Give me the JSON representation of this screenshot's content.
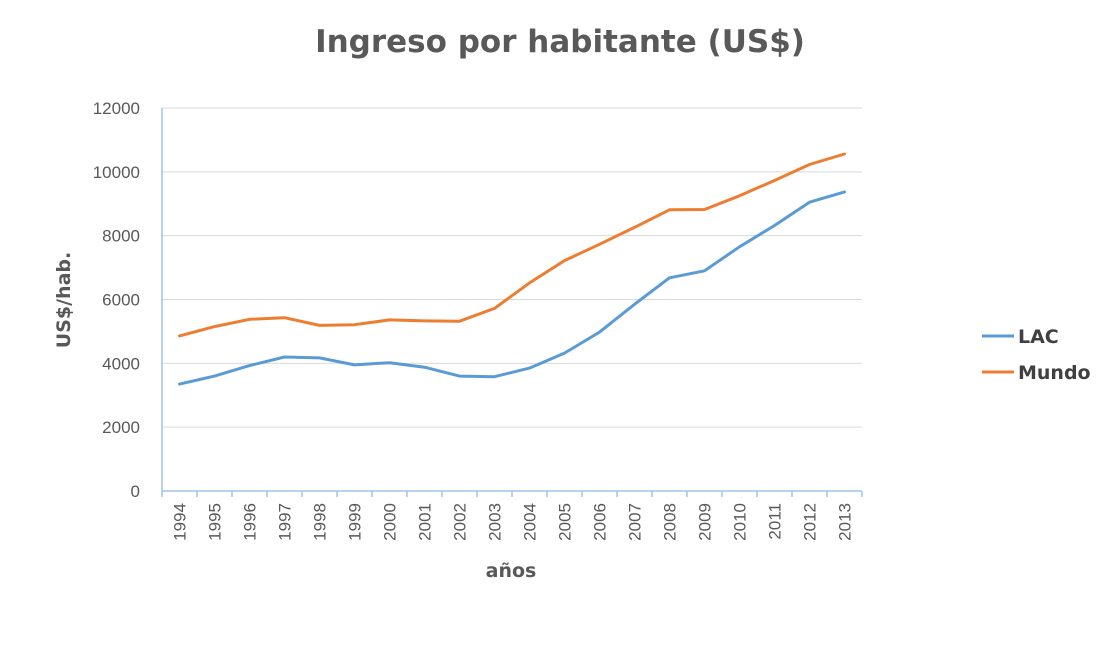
{
  "colors": {
    "lac": "#5b9bd5",
    "mundo": "#ed7d31",
    "text": "#595959",
    "grid": "#d9d9d9"
  },
  "chart_data": {
    "type": "line",
    "title": "Ingreso por habitante (US$)",
    "xlabel": "años",
    "ylabel": "US$/hab.",
    "ylim": [
      0,
      12000
    ],
    "yticks": [
      "0",
      "2000",
      "4000",
      "6000",
      "8000",
      "10000",
      "12000"
    ],
    "categories": [
      "1994",
      "1995",
      "1996",
      "1997",
      "1998",
      "1999",
      "2000",
      "2001",
      "2002",
      "2003",
      "2004",
      "2005",
      "2006",
      "2007",
      "2008",
      "2009",
      "2010",
      "2011",
      "2012",
      "2013"
    ],
    "grid": true,
    "legend_position": "right",
    "series": [
      {
        "name": "LAC",
        "color": "#5b9bd5",
        "values": [
          3350,
          3600,
          3930,
          4200,
          4170,
          3950,
          4020,
          3880,
          3600,
          3580,
          3850,
          4320,
          4980,
          5850,
          6680,
          6900,
          7650,
          8320,
          9050,
          9370
        ]
      },
      {
        "name": "Mundo",
        "color": "#ed7d31",
        "values": [
          4860,
          5150,
          5380,
          5430,
          5190,
          5210,
          5360,
          5330,
          5320,
          5720,
          6520,
          7220,
          7730,
          8260,
          8810,
          8820,
          9250,
          9730,
          10230,
          10560
        ]
      }
    ]
  }
}
